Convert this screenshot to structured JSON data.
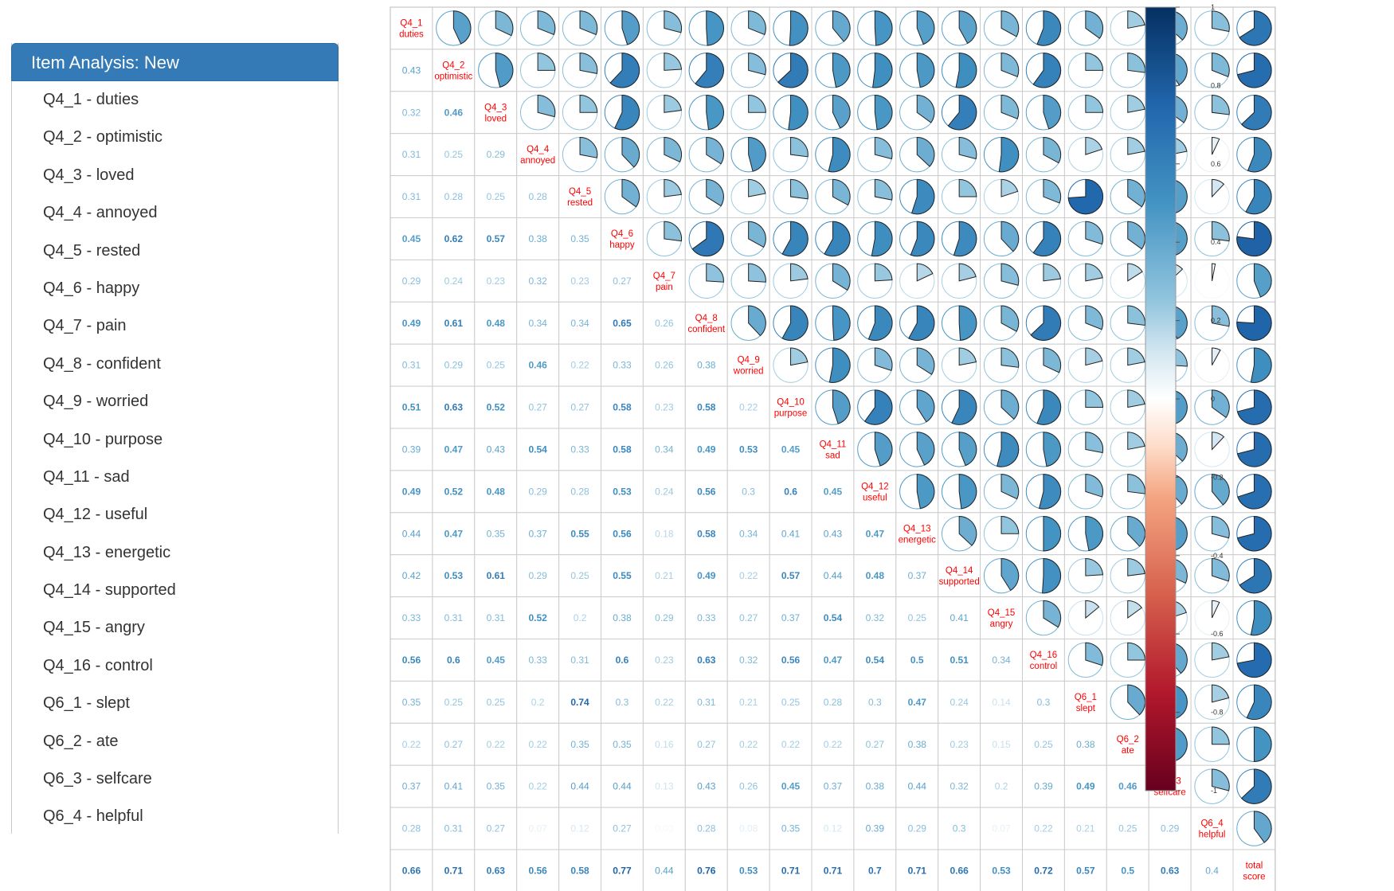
{
  "sidebar": {
    "header": "Item Analysis: New",
    "items": [
      "Q4_1 - duties",
      "Q4_2 - optimistic",
      "Q4_3 - loved",
      "Q4_4 - annoyed",
      "Q4_5 - rested",
      "Q4_6 - happy",
      "Q4_7 - pain",
      "Q4_8 - confident",
      "Q4_9 - worried",
      "Q4_10 - purpose",
      "Q4_11 - sad",
      "Q4_12 - useful",
      "Q4_13 - energetic",
      "Q4_14 - supported",
      "Q4_15 - angry",
      "Q4_16 - control",
      "Q6_1 - slept",
      "Q6_2 - ate",
      "Q6_3 - selfcare",
      "Q6_4 - helpful"
    ]
  },
  "chart_data": {
    "type": "heatmap",
    "title": "",
    "variables": [
      [
        "Q4_1",
        "duties"
      ],
      [
        "Q4_2",
        "optimistic"
      ],
      [
        "Q4_3",
        "loved"
      ],
      [
        "Q4_4",
        "annoyed"
      ],
      [
        "Q4_5",
        "rested"
      ],
      [
        "Q4_6",
        "happy"
      ],
      [
        "Q4_7",
        "pain"
      ],
      [
        "Q4_8",
        "confident"
      ],
      [
        "Q4_9",
        "worried"
      ],
      [
        "Q4_10",
        "purpose"
      ],
      [
        "Q4_11",
        "sad"
      ],
      [
        "Q4_12",
        "useful"
      ],
      [
        "Q4_13",
        "energetic"
      ],
      [
        "Q4_14",
        "supported"
      ],
      [
        "Q4_15",
        "angry"
      ],
      [
        "Q4_16",
        "control"
      ],
      [
        "Q6_1",
        "slept"
      ],
      [
        "Q6_2",
        "ate"
      ],
      [
        "Q6_3",
        "selfcare"
      ],
      [
        "Q6_4",
        "helpful"
      ],
      [
        "total",
        "score"
      ]
    ],
    "lower_triangle": [
      [],
      [
        0.43
      ],
      [
        0.32,
        0.46
      ],
      [
        0.31,
        0.25,
        0.29
      ],
      [
        0.31,
        0.28,
        0.25,
        0.28
      ],
      [
        0.45,
        0.62,
        0.57,
        0.38,
        0.35
      ],
      [
        0.29,
        0.24,
        0.23,
        0.32,
        0.23,
        0.27
      ],
      [
        0.49,
        0.61,
        0.48,
        0.34,
        0.34,
        0.65,
        0.26
      ],
      [
        0.31,
        0.29,
        0.25,
        0.46,
        0.22,
        0.33,
        0.26,
        0.38
      ],
      [
        0.51,
        0.63,
        0.52,
        0.27,
        0.27,
        0.58,
        0.23,
        0.58,
        0.22
      ],
      [
        0.39,
        0.47,
        0.43,
        0.54,
        0.33,
        0.58,
        0.34,
        0.49,
        0.53,
        0.45
      ],
      [
        0.49,
        0.52,
        0.48,
        0.29,
        0.28,
        0.53,
        0.24,
        0.56,
        0.3,
        0.6,
        0.45
      ],
      [
        0.44,
        0.47,
        0.35,
        0.37,
        0.55,
        0.56,
        0.18,
        0.58,
        0.34,
        0.41,
        0.43,
        0.47
      ],
      [
        0.42,
        0.53,
        0.61,
        0.29,
        0.25,
        0.55,
        0.21,
        0.49,
        0.22,
        0.57,
        0.44,
        0.48,
        0.37
      ],
      [
        0.33,
        0.31,
        0.31,
        0.52,
        0.2,
        0.38,
        0.29,
        0.33,
        0.27,
        0.37,
        0.54,
        0.32,
        0.25,
        0.41
      ],
      [
        0.56,
        0.6,
        0.45,
        0.33,
        0.31,
        0.6,
        0.23,
        0.63,
        0.32,
        0.56,
        0.47,
        0.54,
        0.5,
        0.51,
        0.34
      ],
      [
        0.35,
        0.25,
        0.25,
        0.2,
        0.74,
        0.3,
        0.22,
        0.31,
        0.21,
        0.25,
        0.28,
        0.3,
        0.47,
        0.24,
        0.14,
        0.3
      ],
      [
        0.22,
        0.27,
        0.22,
        0.22,
        0.35,
        0.35,
        0.16,
        0.27,
        0.22,
        0.22,
        0.22,
        0.27,
        0.38,
        0.23,
        0.15,
        0.25,
        0.38
      ],
      [
        0.37,
        0.41,
        0.35,
        0.22,
        0.44,
        0.44,
        0.13,
        0.43,
        0.26,
        0.45,
        0.37,
        0.38,
        0.44,
        0.32,
        0.2,
        0.39,
        0.49,
        0.46
      ],
      [
        0.28,
        0.31,
        0.27,
        0.07,
        0.12,
        0.27,
        0.03,
        0.28,
        0.08,
        0.35,
        0.12,
        0.39,
        0.29,
        0.3,
        0.07,
        0.22,
        0.21,
        0.25,
        0.29
      ],
      [
        0.66,
        0.71,
        0.63,
        0.56,
        0.58,
        0.77,
        0.44,
        0.76,
        0.53,
        0.71,
        0.71,
        0.7,
        0.71,
        0.66,
        0.53,
        0.72,
        0.57,
        0.5,
        0.63,
        0.4
      ]
    ],
    "upper_glyph": "pie",
    "legend": {
      "ticks": [
        1,
        0.8,
        0.6,
        0.4,
        0.2,
        0,
        -0.2,
        -0.4,
        -0.6,
        -0.8,
        -1
      ],
      "tick_labels": [
        "1",
        "0.8",
        "0.6",
        "0.4",
        "0.2",
        "0",
        "-0.2",
        "-0.4",
        "-0.6",
        "-0.8",
        "-1"
      ],
      "range": [
        -1,
        1
      ],
      "placement": "right"
    },
    "colors": {
      "positive": "#053061",
      "negative": "#67001f",
      "diag_label": "#ff0000",
      "grid": "#cccccc"
    }
  }
}
